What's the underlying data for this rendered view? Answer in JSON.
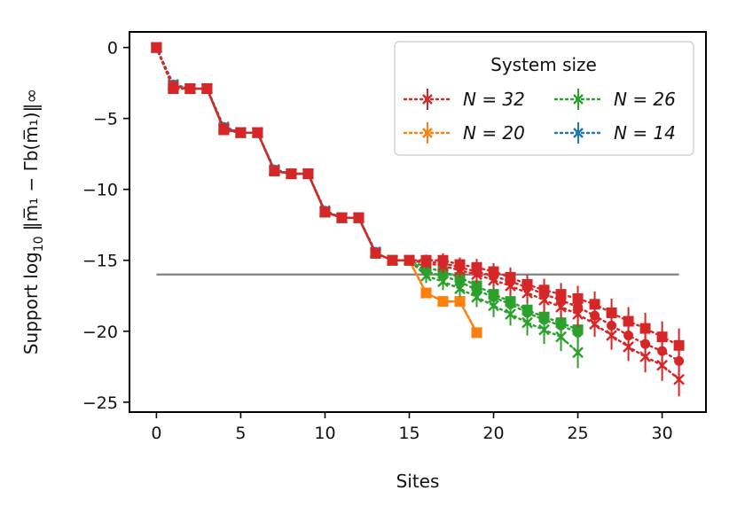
{
  "chart_data": {
    "type": "line",
    "xlabel": "Sites",
    "ylabel": "Support log",
    "ylabel_sub": "10",
    "ylabel_norm": "‖m̅₁ − Γb(m̅₁)‖∞",
    "xlim": [
      -1.6,
      32.6
    ],
    "ylim": [
      -25.7,
      1.1
    ],
    "xticks": [
      0,
      5,
      10,
      15,
      20,
      25,
      30
    ],
    "yticks": [
      0,
      -5,
      -10,
      -15,
      -20,
      -25
    ],
    "ytick_labels": [
      "0",
      "−5",
      "−10",
      "−15",
      "−20",
      "−25"
    ],
    "hline": {
      "y": -16.0,
      "color": "#808080"
    },
    "legend": {
      "title": "System size",
      "position": "top-right",
      "columns": 2
    },
    "series": [
      {
        "name": "N = 32",
        "color": "#d62728",
        "x": [
          0,
          1,
          2,
          3,
          4,
          5,
          6,
          7,
          8,
          9,
          10,
          11,
          12,
          13,
          14,
          15,
          16,
          17,
          18,
          19,
          20,
          21,
          22,
          23,
          24,
          25,
          26,
          27,
          28,
          29,
          30,
          31
        ],
        "squares": [
          0,
          -2.9,
          -2.9,
          -2.9,
          -5.8,
          -6,
          -6,
          -8.7,
          -8.9,
          -8.9,
          -11.6,
          -12,
          -12,
          -14.5,
          -15,
          -15,
          -15,
          -15,
          -15.3,
          -15.5,
          -15.8,
          -16.2,
          -16.7,
          -17.1,
          -17.4,
          -17.7,
          -18.1,
          -18.7,
          -19.3,
          -19.8,
          -20.4,
          -21.0
        ],
        "circles": [
          0,
          -2.7,
          -2.9,
          -2.9,
          -5.7,
          -6,
          -6,
          -8.7,
          -8.9,
          -8.9,
          -11.6,
          -12,
          -12,
          -14.5,
          -15,
          -15,
          -15.1,
          -15.2,
          -15.5,
          -15.8,
          -16.1,
          -16.5,
          -16.9,
          -17.4,
          -17.8,
          -18.3,
          -18.9,
          -19.6,
          -20.3,
          -20.9,
          -21.4,
          -22.1
        ],
        "crosses": [
          0,
          -2.7,
          -2.9,
          -2.9,
          -5.7,
          -6,
          -6,
          -8.7,
          -8.9,
          -8.9,
          -11.6,
          -12,
          -12,
          -14.5,
          -15,
          -15,
          -15.2,
          -15.4,
          -15.7,
          -16.0,
          -16.4,
          -16.8,
          -17.3,
          -17.8,
          -18.3,
          -18.8,
          -19.5,
          -20.3,
          -21.1,
          -21.8,
          -22.4,
          -23.4
        ],
        "err": [
          0,
          0.3,
          0.2,
          0.2,
          0.3,
          0.2,
          0.2,
          0.3,
          0.2,
          0.2,
          0.3,
          0.2,
          0.2,
          0.3,
          0.2,
          0.3,
          0.4,
          0.5,
          0.5,
          0.6,
          0.6,
          0.7,
          0.7,
          0.8,
          0.8,
          0.9,
          0.9,
          1.0,
          1.0,
          1.1,
          1.1,
          1.2
        ]
      },
      {
        "name": "N = 26",
        "color": "#2ca02c",
        "x": [
          0,
          1,
          2,
          3,
          4,
          5,
          6,
          7,
          8,
          9,
          10,
          11,
          12,
          13,
          14,
          15,
          16,
          17,
          18,
          19,
          20,
          21,
          22,
          23,
          24,
          25
        ],
        "squares": [
          0,
          -2.9,
          -2.9,
          -2.9,
          -5.8,
          -6,
          -6,
          -8.7,
          -8.9,
          -8.9,
          -11.6,
          -12,
          -12,
          -14.5,
          -15,
          -15,
          -15.5,
          -15.8,
          -16.2,
          -16.8,
          -17.4,
          -17.9,
          -18.5,
          -19.0,
          -19.4,
          -19.9
        ],
        "circles": [
          0,
          -2.7,
          -2.9,
          -2.9,
          -5.7,
          -6,
          -6,
          -8.7,
          -8.9,
          -8.9,
          -11.6,
          -12,
          -12,
          -14.5,
          -15,
          -15,
          -15.8,
          -16.1,
          -16.5,
          -17.1,
          -17.6,
          -18.1,
          -18.7,
          -19.2,
          -19.6,
          -20.1
        ],
        "crosses": [
          0,
          -2.7,
          -2.9,
          -2.9,
          -5.7,
          -6,
          -6,
          -8.7,
          -8.9,
          -8.9,
          -11.6,
          -12,
          -12,
          -14.5,
          -15,
          -15,
          -16.1,
          -16.5,
          -17.0,
          -17.6,
          -18.2,
          -18.8,
          -19.4,
          -19.9,
          -20.4,
          -21.5
        ],
        "err": [
          0,
          0.3,
          0.2,
          0.2,
          0.3,
          0.2,
          0.2,
          0.3,
          0.2,
          0.2,
          0.3,
          0.2,
          0.2,
          0.3,
          0.2,
          0.3,
          0.5,
          0.6,
          0.6,
          0.7,
          0.8,
          0.8,
          0.9,
          1.0,
          1.0,
          1.1
        ]
      },
      {
        "name": "N = 20",
        "color": "#ff7f0e",
        "x": [
          0,
          1,
          2,
          3,
          4,
          5,
          6,
          7,
          8,
          9,
          10,
          11,
          12,
          13,
          14,
          15,
          16,
          17,
          18,
          19
        ],
        "squares": [
          0,
          -2.9,
          -2.9,
          -2.9,
          -5.8,
          -6,
          -6,
          -8.7,
          -8.9,
          -8.9,
          -11.6,
          -12,
          -12,
          -14.5,
          -15,
          -15,
          -17.3,
          -17.9,
          -17.9,
          -20.1
        ],
        "circles": [
          0,
          -2.7,
          -2.9,
          -2.9,
          -5.7,
          -6,
          -6,
          -8.7,
          -8.9,
          -8.9,
          -11.6,
          -12,
          -12,
          -14.5,
          -15,
          -15,
          -17.3,
          -17.9,
          -17.9,
          -20.1
        ],
        "crosses": [
          0,
          -2.7,
          -2.9,
          -2.9,
          -5.7,
          -6,
          -6,
          -8.7,
          -8.9,
          -8.9,
          -11.6,
          -12,
          -12,
          -14.5,
          -15,
          -15,
          -17.3,
          -17.9,
          -17.9,
          -20.1
        ],
        "err": [
          0,
          0.3,
          0.2,
          0.2,
          0.3,
          0.2,
          0.2,
          0.3,
          0.2,
          0.2,
          0.3,
          0.2,
          0.2,
          0.3,
          0.2,
          0.3,
          0.3,
          0.3,
          0.3,
          0.3
        ]
      },
      {
        "name": "N = 14",
        "color": "#1f77b4",
        "x": [
          0,
          1,
          2,
          3,
          4,
          5,
          6,
          7,
          8,
          9,
          10,
          11,
          12,
          13
        ],
        "squares": [
          0,
          -2.7,
          -2.9,
          -2.9,
          -5.8,
          -6,
          -6,
          -8.7,
          -8.9,
          -8.9,
          -11.6,
          -12,
          -12,
          -14.5
        ],
        "circles": [
          0,
          -2.6,
          -2.9,
          -2.9,
          -5.6,
          -6,
          -6,
          -8.6,
          -8.9,
          -8.9,
          -11.5,
          -12,
          -12,
          -14.4
        ],
        "crosses": [
          0,
          -2.6,
          -2.9,
          -2.9,
          -5.6,
          -6,
          -6,
          -8.6,
          -8.9,
          -8.9,
          -11.5,
          -12,
          -12,
          -14.4
        ],
        "err": [
          0,
          0.3,
          0.2,
          0.2,
          0.3,
          0.2,
          0.2,
          0.3,
          0.2,
          0.2,
          0.3,
          0.2,
          0.2,
          0.3
        ]
      }
    ]
  }
}
